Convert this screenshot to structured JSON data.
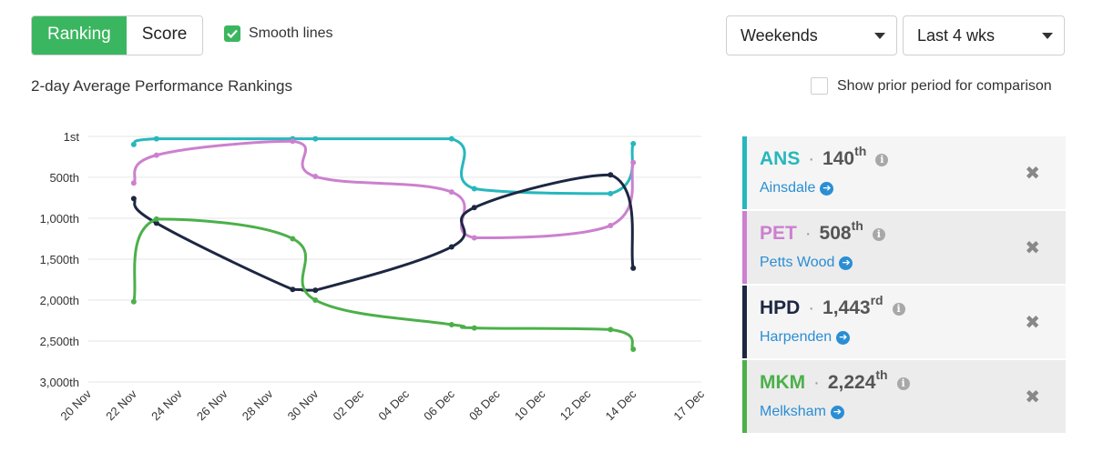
{
  "controls": {
    "mode_toggle": {
      "ranking_label": "Ranking",
      "score_label": "Score",
      "active": "Ranking"
    },
    "smooth_lines": {
      "label": "Smooth lines",
      "checked": true
    },
    "day_filter": {
      "value": "Weekends"
    },
    "period_filter": {
      "value": "Last 4 wks"
    },
    "prior_period": {
      "label": "Show prior period for comparison",
      "checked": false
    }
  },
  "colors": {
    "ANS": "#27b7bd",
    "PET": "#cc80cf",
    "HPD": "#1c2742",
    "MKM": "#4cb04a",
    "accent": "#3bb660",
    "link": "#2a8ed4"
  },
  "chart_data": {
    "type": "line",
    "title": "2-day Average Performance Rankings",
    "xlabel": "",
    "ylabel": "",
    "x_ticks": [
      "20 Nov",
      "22 Nov",
      "24 Nov",
      "26 Nov",
      "28 Nov",
      "30 Nov",
      "02 Dec",
      "04 Dec",
      "06 Dec",
      "08 Dec",
      "10 Dec",
      "12 Dec",
      "14 Dec",
      "17 Dec"
    ],
    "y_ticks": [
      {
        "value": 1,
        "label": "1st"
      },
      {
        "value": 500,
        "label": "500th"
      },
      {
        "value": 1000,
        "label": "1,000th"
      },
      {
        "value": 1500,
        "label": "1,500th"
      },
      {
        "value": 2000,
        "label": "2,000th"
      },
      {
        "value": 2500,
        "label": "2,500th"
      },
      {
        "value": 3000,
        "label": "3,000th"
      }
    ],
    "ylim": [
      1,
      3000
    ],
    "y_inverted": true,
    "grid": true,
    "smooth": true,
    "series": [
      {
        "name": "ANS",
        "x": [
          "22 Nov",
          "23 Nov",
          "29 Nov",
          "30 Nov",
          "06 Dec",
          "07 Dec",
          "13 Dec",
          "14 Dec"
        ],
        "values": [
          100,
          30,
          30,
          30,
          30,
          640,
          700,
          90
        ]
      },
      {
        "name": "PET",
        "x": [
          "22 Nov",
          "23 Nov",
          "29 Nov",
          "30 Nov",
          "06 Dec",
          "07 Dec",
          "13 Dec",
          "14 Dec"
        ],
        "values": [
          570,
          230,
          60,
          490,
          680,
          1240,
          1090,
          320
        ]
      },
      {
        "name": "HPD",
        "x": [
          "22 Nov",
          "23 Nov",
          "29 Nov",
          "30 Nov",
          "06 Dec",
          "07 Dec",
          "13 Dec",
          "14 Dec"
        ],
        "values": [
          760,
          1060,
          1870,
          1880,
          1350,
          870,
          470,
          1610
        ]
      },
      {
        "name": "MKM",
        "x": [
          "22 Nov",
          "23 Nov",
          "29 Nov",
          "30 Nov",
          "06 Dec",
          "07 Dec",
          "13 Dec",
          "14 Dec"
        ],
        "values": [
          2020,
          1010,
          1250,
          2000,
          2300,
          2340,
          2360,
          2600
        ]
      }
    ]
  },
  "legend": [
    {
      "code": "ANS",
      "rank": "140",
      "suffix": "th",
      "name": "Ainsdale"
    },
    {
      "code": "PET",
      "rank": "508",
      "suffix": "th",
      "name": "Petts Wood"
    },
    {
      "code": "HPD",
      "rank": "1,443",
      "suffix": "rd",
      "name": "Harpenden"
    },
    {
      "code": "MKM",
      "rank": "2,224",
      "suffix": "th",
      "name": "Melksham"
    }
  ]
}
